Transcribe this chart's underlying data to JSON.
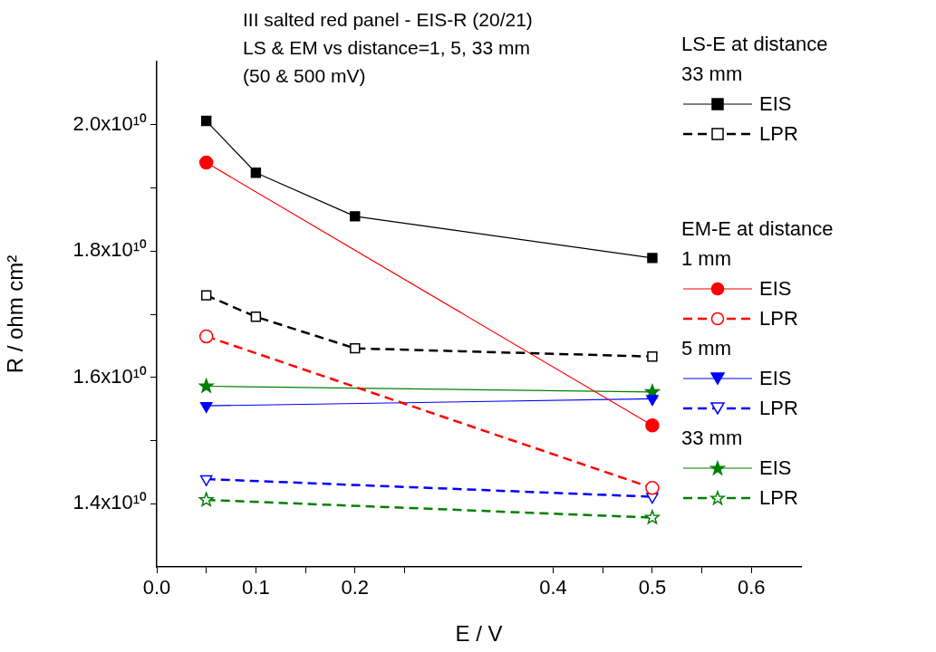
{
  "chart_data": {
    "type": "line",
    "title": "III salted red panel - EIS-R (20/21)\nLS & EM vs distance=1, 5, 33 mm\n(50 & 500 mV)",
    "xlabel": "E / V",
    "ylabel": "R / ohm cm²",
    "xlim": [
      0,
      0.65
    ],
    "xticks": [
      {
        "value": 0,
        "label": "0.0"
      },
      {
        "value": 0.05,
        "label": null
      },
      0.1,
      {
        "value": 0.15,
        "label": null
      },
      0.2,
      {
        "value": 0.25,
        "label": null
      },
      0.4,
      {
        "value": 0.45,
        "label": null
      },
      0.5,
      {
        "value": 0.55,
        "label": null
      },
      0.6
    ],
    "ylim": [
      13000000000.0,
      21000000000.0
    ],
    "yticks": [
      {
        "value": 14000000000.0,
        "label": "1.4x10¹⁰"
      },
      {
        "value": 15000000000.0,
        "label": null
      },
      {
        "value": 16000000000.0,
        "label": "1.6x10¹⁰"
      },
      {
        "value": 17000000000.0,
        "label": null
      },
      {
        "value": 18000000000.0,
        "label": "1.8x10¹⁰"
      },
      {
        "value": 19000000000.0,
        "label": null
      },
      {
        "value": 20000000000.0,
        "label": "2.0x10¹⁰"
      }
    ],
    "grid": false,
    "legend": "right",
    "annotations": [
      "LS-E at distance",
      "33 mm",
      "EM-E at distance",
      "1 mm",
      "5 mm",
      "33 mm"
    ],
    "series": [
      {
        "name": "EIS",
        "color": "#000000",
        "marker": "square",
        "line_style": "solid",
        "x": [
          0.05,
          0.1,
          0.2,
          0.5
        ],
        "values": [
          20060000000.0,
          19240000000.0,
          18550000000.0,
          17890000000.0
        ]
      },
      {
        "name": "LPR",
        "color": "#000000",
        "marker": "square",
        "line_style": "dashed",
        "x": [
          0.05,
          0.1,
          0.2,
          0.5
        ],
        "values": [
          17300000000.0,
          16960000000.0,
          16460000000.0,
          16330000000.0
        ]
      },
      {
        "name": "EIS",
        "color": "#ff0000",
        "marker": "circle",
        "line_style": "solid",
        "x": [
          0.05,
          0.5
        ],
        "values": [
          19400000000.0,
          15240000000.0
        ]
      },
      {
        "name": "LPR",
        "color": "#ff0000",
        "marker": "circle",
        "line_style": "dashed",
        "x": [
          0.05,
          0.5
        ],
        "values": [
          16650000000.0,
          14250000000.0
        ]
      },
      {
        "name": "EIS",
        "color": "#0000ff",
        "marker": "triangle",
        "line_style": "solid",
        "x": [
          0.05,
          0.5
        ],
        "values": [
          15550000000.0,
          15660000000.0
        ]
      },
      {
        "name": "LPR",
        "color": "#0000ff",
        "marker": "triangle",
        "line_style": "dashed",
        "x": [
          0.05,
          0.5
        ],
        "values": [
          14390000000.0,
          14110000000.0
        ]
      },
      {
        "name": "EIS",
        "color": "#008000",
        "marker": "star",
        "line_style": "solid",
        "x": [
          0.05,
          0.5
        ],
        "values": [
          15860000000.0,
          15770000000.0
        ]
      },
      {
        "name": "LPR",
        "color": "#008000",
        "marker": "star",
        "line_style": "dashed",
        "x": [
          0.05,
          0.5
        ],
        "values": [
          14060000000.0,
          13780000000.0
        ]
      }
    ]
  }
}
